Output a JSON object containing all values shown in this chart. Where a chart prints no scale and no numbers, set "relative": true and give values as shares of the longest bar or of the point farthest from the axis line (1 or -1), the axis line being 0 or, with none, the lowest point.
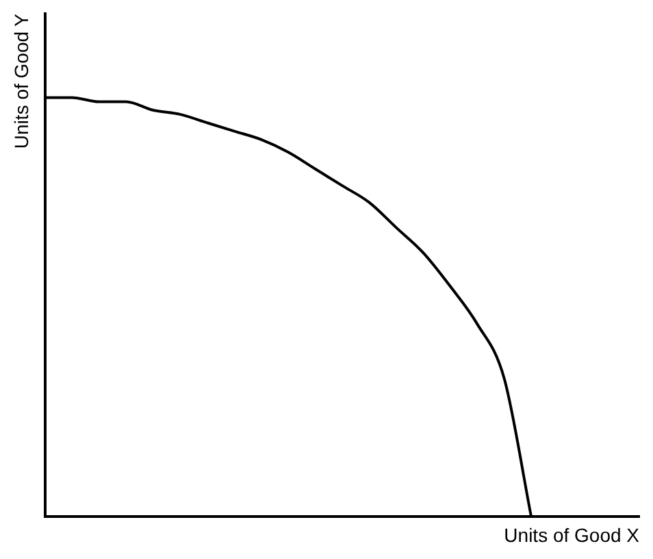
{
  "chart_data": {
    "type": "line",
    "relative": true,
    "xlabel": "Units of Good X",
    "ylabel": "Units of Good Y",
    "categories": [
      null,
      null,
      null,
      null,
      null,
      null,
      null,
      null,
      null,
      null,
      null,
      null,
      null,
      null,
      null,
      null,
      null,
      null,
      null,
      null,
      null,
      null,
      null
    ],
    "series": [
      {
        "color": "#000000",
        "values": [
          1,
          1,
          0.99,
          0.99,
          0.97,
          0.96,
          0.94,
          0.92,
          0.9,
          0.87,
          0.83,
          0.79,
          0.75,
          0.69,
          0.63,
          0.55,
          0.46,
          0.33,
          0,
          null,
          null,
          null,
          null
        ]
      }
    ],
    "marker": "none",
    "line_style": "solid",
    "grid": false,
    "legend": false
  }
}
